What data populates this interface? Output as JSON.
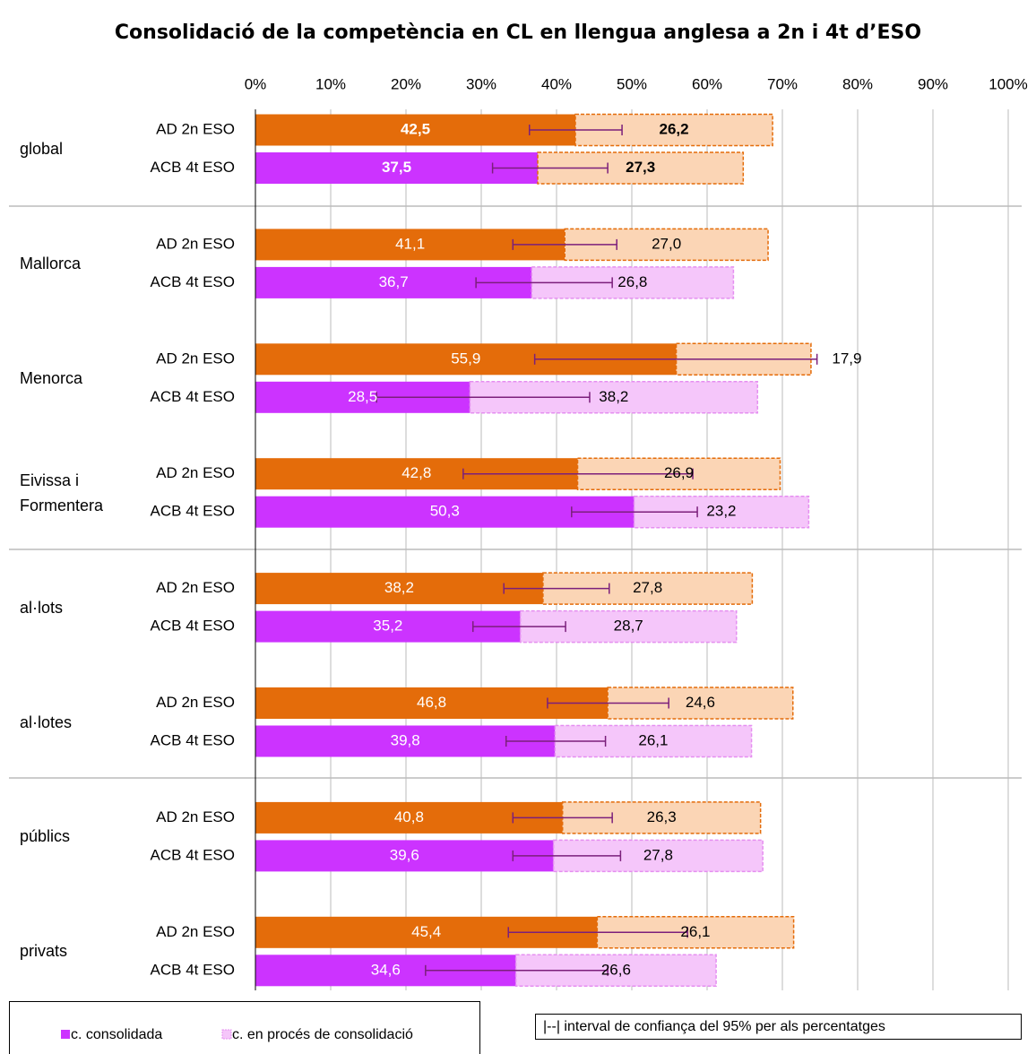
{
  "chart_data": {
    "type": "bar",
    "orientation": "horizontal",
    "stacked": true,
    "title": "Consolidació de la competència en CL en llengua anglesa a 2n i 4t d’ESO",
    "groups": [
      "global",
      "Mallorca",
      "Menorca",
      "Eivissa i Formentera",
      "al·lots",
      "al·lotes",
      "públics",
      "privats"
    ],
    "categories": [
      "AD 2n ESO",
      "ACB 4t ESO",
      "AD 2n ESO",
      "ACB 4t ESO",
      "AD 2n ESO",
      "ACB 4t ESO",
      "AD 2n ESO",
      "ACB 4t ESO",
      "AD 2n ESO",
      "ACB 4t ESO",
      "AD 2n ESO",
      "ACB 4t ESO",
      "AD 2n ESO",
      "ACB 4t ESO",
      "AD 2n ESO",
      "ACB 4t ESO"
    ],
    "series": [
      {
        "name": "c. consolidada",
        "color": "#cc33ff",
        "colors": [
          "#e46c0a",
          "#cc33ff",
          "#e46c0a",
          "#cc33ff",
          "#e46c0a",
          "#cc33ff",
          "#e46c0a",
          "#cc33ff",
          "#e46c0a",
          "#cc33ff",
          "#e46c0a",
          "#cc33ff",
          "#e46c0a",
          "#cc33ff",
          "#e46c0a",
          "#cc33ff"
        ],
        "values": [
          42.5,
          37.5,
          41.1,
          36.7,
          55.9,
          28.5,
          42.8,
          50.3,
          38.2,
          35.2,
          46.8,
          39.8,
          40.8,
          39.6,
          45.4,
          34.6
        ],
        "value_labels": [
          "42,5",
          "37,5",
          "41,1",
          "36,7",
          "55,9",
          "28,5",
          "42,8",
          "50,3",
          "38,2",
          "35,2",
          "46,8",
          "39,8",
          "40,8",
          "39,6",
          "45,4",
          "34,6"
        ]
      },
      {
        "name": "c. en procés de consolidació",
        "color": "#f5c6fa",
        "colors": [
          "#fbd5b5",
          "#fbd5b5",
          "#fbd5b5",
          "#f5c6fa",
          "#fbd5b5",
          "#f5c6fa",
          "#fbd5b5",
          "#f5c6fa",
          "#fbd5b5",
          "#f5c6fa",
          "#fbd5b5",
          "#f5c6fa",
          "#fbd5b5",
          "#f5c6fa",
          "#fbd5b5",
          "#f5c6fa"
        ],
        "values": [
          26.2,
          27.3,
          27.0,
          26.8,
          17.9,
          38.2,
          26.9,
          23.2,
          27.8,
          28.7,
          24.6,
          26.1,
          26.3,
          27.8,
          26.1,
          26.6
        ],
        "value_labels": [
          "26,2",
          "27,3",
          "27,0",
          "26,8",
          "17,9",
          "38,2",
          "26,9",
          "23,2",
          "27,8",
          "28,7",
          "24,6",
          "26,1",
          "26,3",
          "27,8",
          "26,1",
          "26,6"
        ]
      }
    ],
    "error_low": [
      36.4,
      31.5,
      34.2,
      29.3,
      37.1,
      16.1,
      27.6,
      42.0,
      33.0,
      28.9,
      38.8,
      33.3,
      34.2,
      34.2,
      33.6,
      22.6
    ],
    "error_high": [
      48.7,
      46.8,
      48.0,
      47.4,
      74.6,
      44.4,
      58.1,
      58.7,
      47.0,
      41.2,
      54.9,
      46.5,
      47.4,
      48.5,
      57.4,
      46.8
    ],
    "error_color": "#7b1f7b",
    "error_note": "|--| interval de confiança del 95% per als percentatges",
    "xlim": [
      0,
      100
    ],
    "xticks": [
      {
        "value": 0,
        "label": "0%"
      },
      {
        "value": 10,
        "label": "10%"
      },
      {
        "value": 20,
        "label": "20%"
      },
      {
        "value": 30,
        "label": "30%"
      },
      {
        "value": 40,
        "label": "40%"
      },
      {
        "value": 50,
        "label": "50%"
      },
      {
        "value": 60,
        "label": "60%"
      },
      {
        "value": 70,
        "label": "70%"
      },
      {
        "value": 80,
        "label": "80%"
      },
      {
        "value": 90,
        "label": "90%"
      },
      {
        "value": 100,
        "label": "100%"
      }
    ],
    "grid": true,
    "legend": "bottom"
  }
}
